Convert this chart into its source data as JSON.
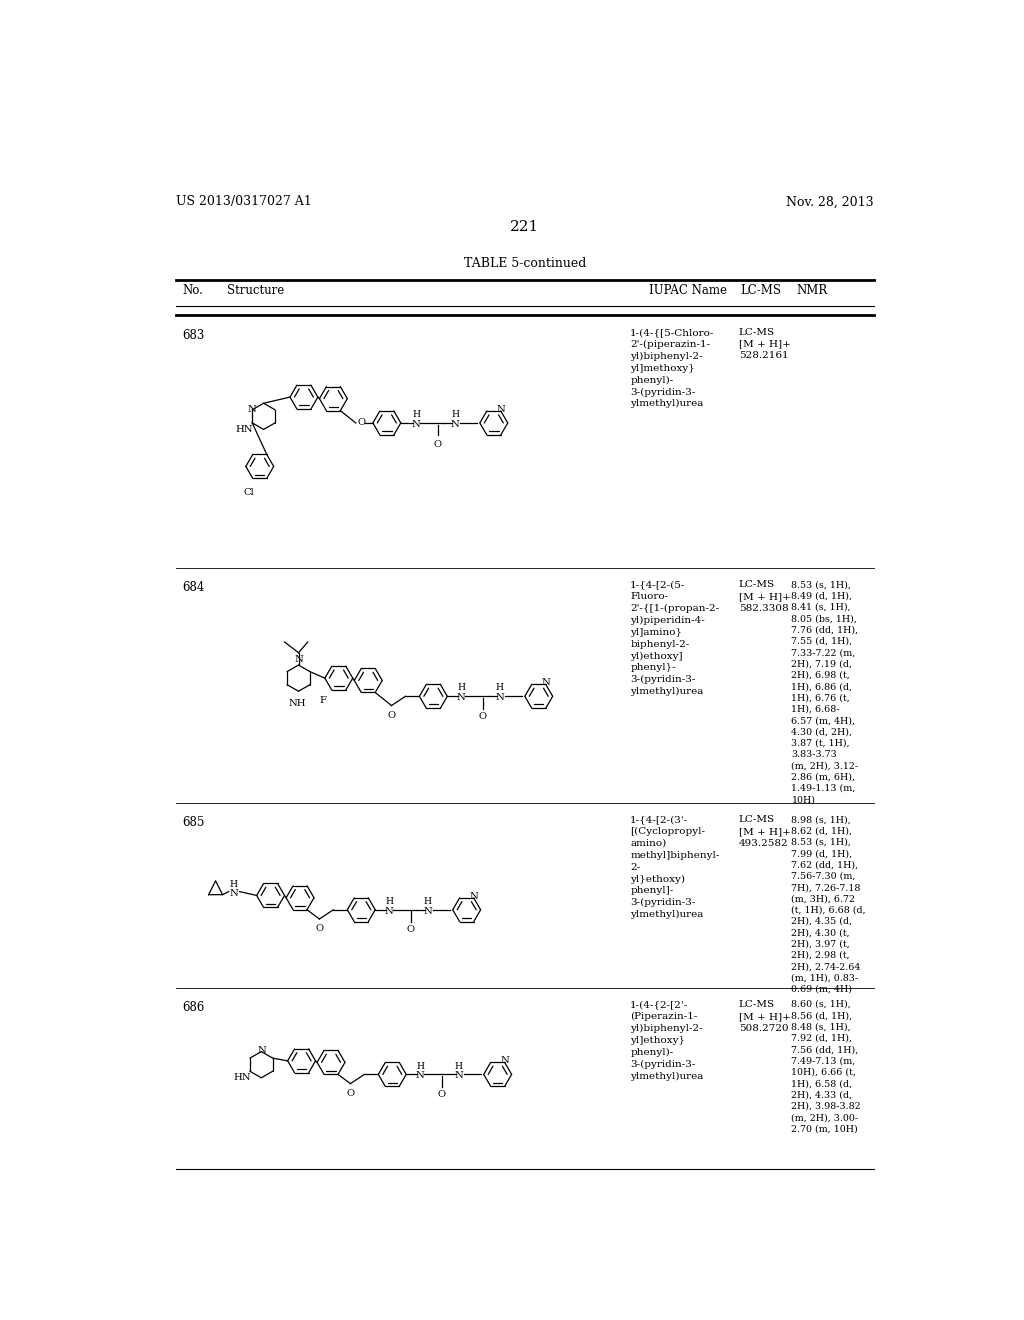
{
  "page_header_left": "US 2013/0317027 A1",
  "page_header_right": "Nov. 28, 2013",
  "page_number": "221",
  "table_title": "TABLE 5-continued",
  "background_color": "#ffffff",
  "text_color": "#000000",
  "compounds": [
    {
      "no": "683",
      "iupac": "1-(4-{[5-Chloro-\n2'-(piperazin-1-\nyl)biphenyl-2-\nyl]methoxy}\nphenyl)-\n3-(pyridin-3-\nylmethyl)urea",
      "lcms": "LC-MS\n[M + H]+\n528.2161",
      "nmr": ""
    },
    {
      "no": "684",
      "iupac": "1-{4-[2-(5-\nFluoro-\n2'-{[1-(propan-2-\nyl)piperidin-4-\nyl]amino}\nbiphenyl-2-\nyl)ethoxy]\nphenyl}-\n3-(pyridin-3-\nylmethyl)urea",
      "lcms": "LC-MS\n[M + H]+\n582.3308",
      "nmr": "8.53 (s, 1H),\n8.49 (d, 1H),\n8.41 (s, 1H),\n8.05 (bs, 1H),\n7.76 (dd, 1H),\n7.55 (d, 1H),\n7.33-7.22 (m,\n2H), 7.19 (d,\n2H), 6.98 (t,\n1H), 6.86 (d,\n1H), 6.76 (t,\n1H), 6.68-\n6.57 (m, 4H),\n4.30 (d, 2H),\n3.87 (t, 1H),\n3.83-3.73\n(m, 2H), 3.12-\n2.86 (m, 6H),\n1.49-1.13 (m,\n10H)"
    },
    {
      "no": "685",
      "iupac": "1-{4-[2-(3'-\n[(Cyclopropyl-\namino)\nmethyl]biphenyl-\n2-\nyl}ethoxy)\nphenyl]-\n3-(pyridin-3-\nylmethyl)urea",
      "lcms": "LC-MS\n[M + H]+\n493.2582",
      "nmr": "8.98 (s, 1H),\n8.62 (d, 1H),\n8.53 (s, 1H),\n7.99 (d, 1H),\n7.62 (dd, 1H),\n7.56-7.30 (m,\n7H), 7.26-7.18\n(m, 3H), 6.72\n(t, 1H), 6.68 (d,\n2H), 4.35 (d,\n2H), 4.30 (t,\n2H), 3.97 (t,\n2H), 2.98 (t,\n2H), 2.74-2.64\n(m, 1H), 0.83-\n0.69 (m, 4H)"
    },
    {
      "no": "686",
      "iupac": "1-(4-{2-[2'-\n(Piperazin-1-\nyl)biphenyl-2-\nyl]ethoxy}\nphenyl)-\n3-(pyridin-3-\nylmethyl)urea",
      "lcms": "LC-MS\n[M + H]+\n508.2720",
      "nmr": "8.60 (s, 1H),\n8.56 (d, 1H),\n8.48 (s, 1H),\n7.92 (d, 1H),\n7.56 (dd, 1H),\n7.49-7.13 (m,\n10H), 6.66 (t,\n1H), 6.58 (d,\n2H), 4.33 (d,\n2H), 3.98-3.82\n(m, 2H), 3.00-\n2.70 (m, 10H)"
    }
  ]
}
